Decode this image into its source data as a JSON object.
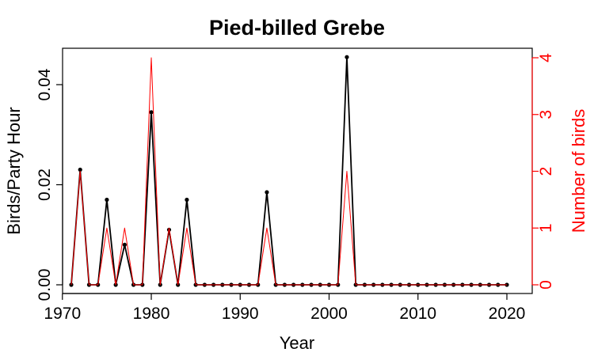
{
  "chart_data": {
    "type": "line",
    "title": "Pied-billed Grebe",
    "xlabel": "Year",
    "ylabel": "Birds/Party Hour",
    "y2label": "Number of birds",
    "xlim": [
      1971,
      2020
    ],
    "ylim": [
      0,
      0.046
    ],
    "y2lim": [
      0,
      4.0
    ],
    "xticks": [
      "1970",
      "1980",
      "1990",
      "2000",
      "2010",
      "2020"
    ],
    "yticks": [
      "0.00",
      "0.02",
      "0.04"
    ],
    "y2ticks": [
      "0",
      "1",
      "2",
      "3",
      "4"
    ],
    "colors": {
      "primary": "#000000",
      "secondary": "#ff0000"
    },
    "x": [
      1971,
      1972,
      1973,
      1974,
      1975,
      1976,
      1977,
      1978,
      1979,
      1980,
      1981,
      1982,
      1983,
      1984,
      1985,
      1986,
      1987,
      1988,
      1989,
      1990,
      1991,
      1992,
      1993,
      1994,
      1995,
      1996,
      1997,
      1998,
      1999,
      2000,
      2001,
      2002,
      2003,
      2004,
      2005,
      2006,
      2007,
      2008,
      2009,
      2010,
      2011,
      2012,
      2013,
      2014,
      2015,
      2016,
      2017,
      2018,
      2019,
      2020
    ],
    "series": [
      {
        "axis": "left",
        "color": "#000000",
        "values": [
          0,
          0.023,
          0,
          0,
          0.017,
          0,
          0.008,
          0,
          0,
          0.0345,
          0,
          0.011,
          0,
          0.017,
          0,
          0,
          0,
          0,
          0,
          0,
          0,
          0,
          0.0185,
          0,
          0,
          0,
          0,
          0,
          0,
          0,
          0,
          0.0455,
          0,
          0,
          0,
          0,
          0,
          0,
          0,
          0,
          0,
          0,
          0,
          0,
          0,
          0,
          0,
          0,
          0,
          0
        ]
      },
      {
        "axis": "right",
        "color": "#ff0000",
        "values": [
          0,
          2,
          0,
          0,
          1,
          0,
          1,
          0,
          0,
          4,
          0,
          1,
          0,
          1,
          0,
          0,
          0,
          0,
          0,
          0,
          0,
          0,
          1,
          0,
          0,
          0,
          0,
          0,
          0,
          0,
          0,
          2,
          0,
          0,
          0,
          0,
          0,
          0,
          0,
          0,
          0,
          0,
          0,
          0,
          0,
          0,
          0,
          0,
          0,
          0
        ]
      }
    ]
  }
}
